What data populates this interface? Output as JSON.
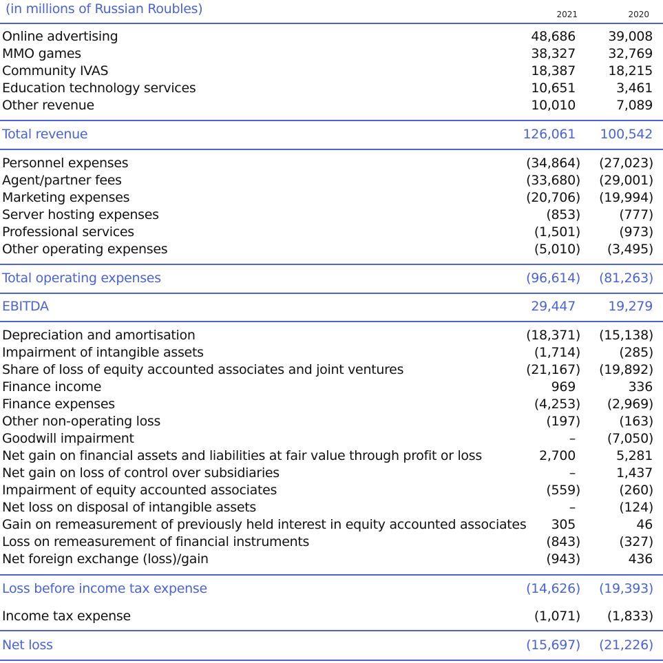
{
  "header": {
    "title": "(in millions of Russian Roubles)",
    "year_current": "2021",
    "year_prior": "2020"
  },
  "colors": {
    "accent": "#4a63d6",
    "text": "#111111"
  },
  "revenue_items": [
    {
      "label": "Online advertising",
      "y2021": "48,686",
      "y2020": "39,008"
    },
    {
      "label": "MMO games",
      "y2021": "38,327",
      "y2020": "32,769"
    },
    {
      "label": "Community IVAS",
      "y2021": "18,387",
      "y2020": "18,215"
    },
    {
      "label": "Education technology services",
      "y2021": "10,651",
      "y2020": "3,461"
    },
    {
      "label": "Other revenue",
      "y2021": "10,010",
      "y2020": "7,089"
    }
  ],
  "total_revenue": {
    "label": "Total revenue",
    "y2021": "126,061",
    "y2020": "100,542"
  },
  "operating_expenses": [
    {
      "label": "Personnel expenses",
      "y2021": "(34,864)",
      "y2020": "(27,023)"
    },
    {
      "label": "Agent/partner fees",
      "y2021": "(33,680)",
      "y2020": "(29,001)"
    },
    {
      "label": "Marketing expenses",
      "y2021": "(20,706)",
      "y2020": "(19,994)"
    },
    {
      "label": "Server hosting expenses",
      "y2021": "(853)",
      "y2020": "(777)"
    },
    {
      "label": "Professional services",
      "y2021": "(1,501)",
      "y2020": "(973)"
    },
    {
      "label": "Other operating expenses",
      "y2021": "(5,010)",
      "y2020": "(3,495)"
    }
  ],
  "total_operating_expenses": {
    "label": "Total operating expenses",
    "y2021": "(96,614)",
    "y2020": "(81,263)"
  },
  "ebitda": {
    "label": "EBITDA",
    "y2021": "29,447",
    "y2020": "19,279"
  },
  "other_items": [
    {
      "label": "Depreciation and amortisation",
      "y2021": "(18,371)",
      "y2020": "(15,138)"
    },
    {
      "label": "Impairment of intangible assets",
      "y2021": "(1,714)",
      "y2020": "(285)"
    },
    {
      "label": "Share of loss of equity accounted associates and joint ventures",
      "y2021": "(21,167)",
      "y2020": "(19,892)"
    },
    {
      "label": "Finance income",
      "y2021": "969",
      "y2020": "336"
    },
    {
      "label": "Finance expenses",
      "y2021": "(4,253)",
      "y2020": "(2,969)"
    },
    {
      "label": "Other non-operating loss",
      "y2021": "(197)",
      "y2020": "(163)"
    },
    {
      "label": "Goodwill impairment",
      "y2021": "–",
      "y2020": "(7,050)"
    },
    {
      "label": "Net gain on financial assets and liabilities at fair value through profit or loss",
      "y2021": "2,700",
      "y2020": "5,281"
    },
    {
      "label": "Net gain on loss of control over subsidiaries",
      "y2021": "–",
      "y2020": "1,437"
    },
    {
      "label": "Impairment of equity accounted associates",
      "y2021": "(559)",
      "y2020": "(260)"
    },
    {
      "label": "Net loss on disposal of intangible assets",
      "y2021": "–",
      "y2020": "(124)"
    },
    {
      "label": "Gain on remeasurement of previously held interest in equity accounted associates",
      "y2021": "305",
      "y2020": "46"
    },
    {
      "label": "Loss on remeasurement of financial instruments",
      "y2021": "(843)",
      "y2020": "(327)"
    },
    {
      "label": "Net foreign exchange (loss)/gain",
      "y2021": "(943)",
      "y2020": "436"
    }
  ],
  "loss_before_tax": {
    "label": "Loss before income tax expense",
    "y2021": "(14,626)",
    "y2020": "(19,393)"
  },
  "income_tax": {
    "label": "Income tax expense",
    "y2021": "(1,071)",
    "y2020": "(1,833)"
  },
  "net_loss": {
    "label": "Net loss",
    "y2021": "(15,697)",
    "y2020": "(21,226)"
  }
}
